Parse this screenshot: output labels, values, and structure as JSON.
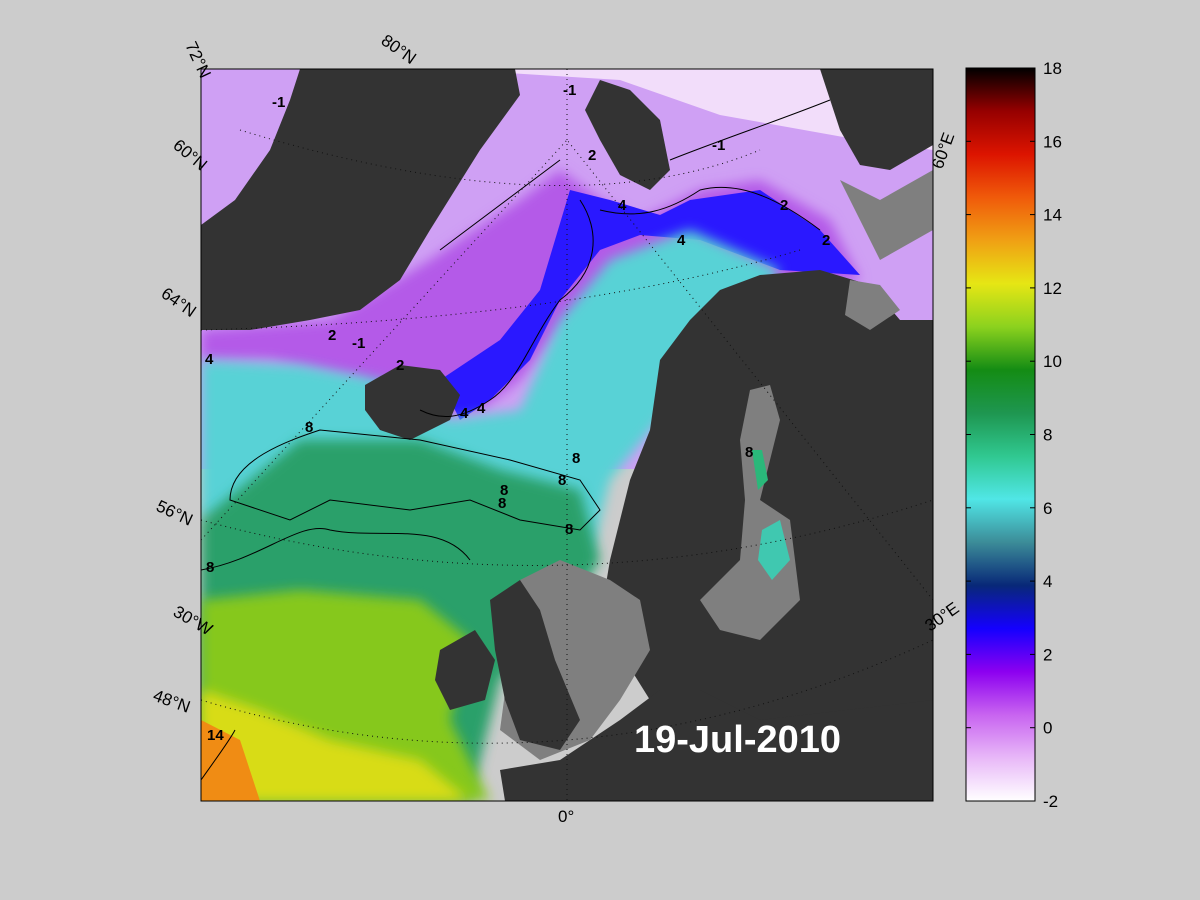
{
  "map": {
    "date_label": "19-Jul-2010",
    "lat_labels": [
      "72°N",
      "60°N",
      "64°N",
      "56°N",
      "48°N"
    ],
    "lon_labels": [
      "80°N",
      "60°E",
      "30°E",
      "0°",
      "30°W"
    ],
    "contour_labels": [
      "-1",
      "-1",
      "-1",
      "-1",
      "2",
      "2",
      "2",
      "2",
      "2",
      "4",
      "4",
      "4",
      "4",
      "4",
      "8",
      "8",
      "8",
      "8",
      "8",
      "8",
      "8",
      "8",
      "14"
    ]
  },
  "colorbar": {
    "min": -2,
    "max": 18,
    "ticks": [
      "18",
      "16",
      "14",
      "12",
      "10",
      "8",
      "6",
      "4",
      "2",
      "0",
      "-2"
    ],
    "colors": [
      "#ffffff",
      "#e8b8f8",
      "#c864f0",
      "#8c00f0",
      "#1400ff",
      "#082878",
      "#3c8c98",
      "#50e6e6",
      "#30c890",
      "#1e9650",
      "#148c14",
      "#8cd21e",
      "#e6e614",
      "#f0a014",
      "#f05a0a",
      "#dc1400",
      "#960000",
      "#000000"
    ]
  },
  "colors": {
    "background": "#cccccc",
    "land": "#333333",
    "ice_land": "#7f7f7f"
  }
}
